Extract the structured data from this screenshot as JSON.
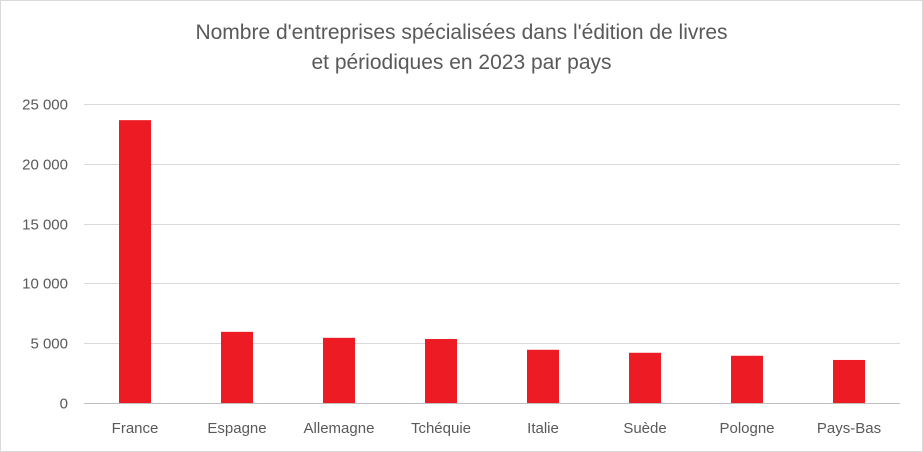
{
  "chart_data": {
    "type": "bar",
    "title_line1": "Nombre d'entreprises spécialisées dans l'édition de livres",
    "title_line2": "et périodiques en 2023 par pays",
    "categories": [
      "France",
      "Espagne",
      "Allemagne",
      "Tchéquie",
      "Italie",
      "Suède",
      "Pologne",
      "Pays-Bas"
    ],
    "values": [
      23650,
      5950,
      5450,
      5350,
      4450,
      4200,
      3950,
      3600
    ],
    "yticks": [
      0,
      5000,
      10000,
      15000,
      20000,
      25000
    ],
    "ytick_labels": [
      "0",
      "5 000",
      "10 000",
      "15 000",
      "20 000",
      "25 000"
    ],
    "ylim": [
      0,
      25000
    ],
    "bar_color": "#ed1c24",
    "grid": true,
    "legend": "none"
  }
}
